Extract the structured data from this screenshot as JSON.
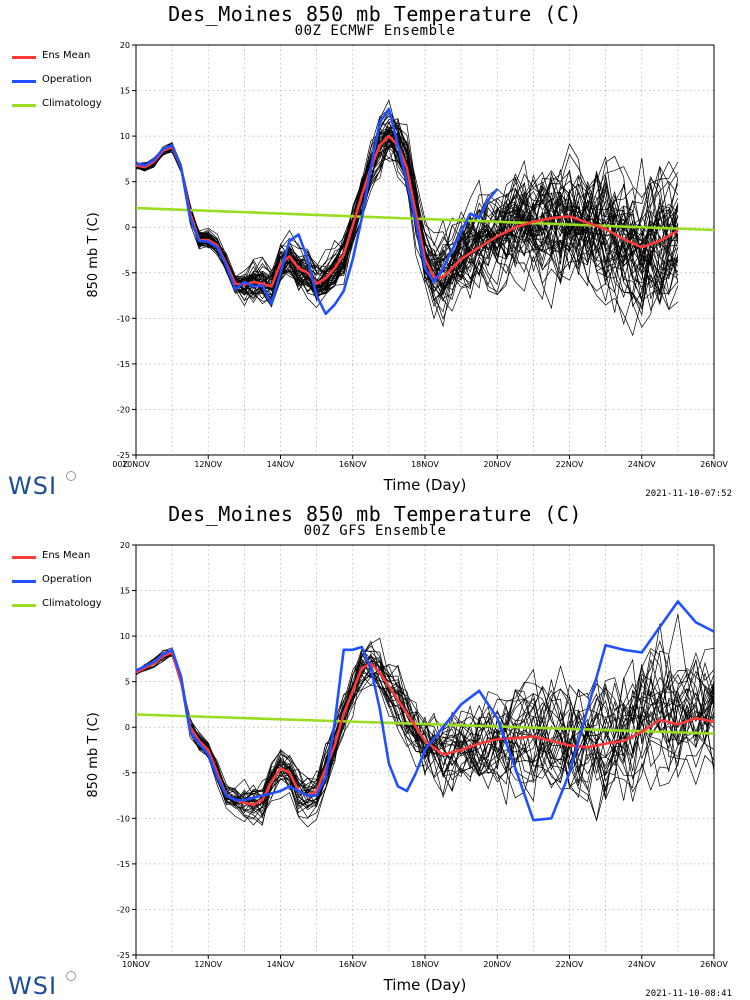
{
  "charts": [
    {
      "title": "Des_Moines 850 mb Temperature (C)",
      "subtitle": "00Z ECMWF Ensemble",
      "timestamp": "2021-11-10-07:52",
      "logo": "WSI",
      "corner_label": "00Z",
      "colors": {
        "ens_mean": "#ff3a3a",
        "operation": "#2050ff",
        "climatology": "#99dd22",
        "members": "#000000"
      }
    },
    {
      "title": "Des_Moines 850 mb Temperature (C)",
      "subtitle": "00Z GFS Ensemble",
      "timestamp": "2021-11-10-08:41",
      "logo": "WSI",
      "corner_label": "",
      "colors": {
        "ens_mean": "#ff3a3a",
        "operation": "#2050ff",
        "climatology": "#99dd22",
        "members": "#000000"
      }
    }
  ],
  "legend": [
    "Ens Mean",
    "Operation",
    "Climatology"
  ],
  "chart_data": [
    {
      "type": "line",
      "title": "Des_Moines 850 mb Temperature (C)",
      "subtitle": "00Z ECMWF Ensemble",
      "xlabel": "Time (Day)",
      "ylabel": "850 mb T (C)",
      "xlim": [
        10.0,
        26.0
      ],
      "ylim": [
        -25,
        20
      ],
      "xticks": [
        {
          "x": 10,
          "label": "10NOV"
        },
        {
          "x": 12,
          "label": "12NOV"
        },
        {
          "x": 14,
          "label": "14NOV"
        },
        {
          "x": 16,
          "label": "16NOV"
        },
        {
          "x": 18,
          "label": "18NOV"
        },
        {
          "x": 20,
          "label": "20NOV"
        },
        {
          "x": 22,
          "label": "22NOV"
        },
        {
          "x": 24,
          "label": "24NOV"
        },
        {
          "x": 26,
          "label": "26NOV"
        }
      ],
      "yticks": [
        -25,
        -20,
        -15,
        -10,
        -5,
        0,
        5,
        10,
        15,
        20
      ],
      "grid": true,
      "legend_position": "left-outside",
      "members_count": 51,
      "members_end": 25.0,
      "series": [
        {
          "name": "Ens Mean",
          "color": "#ff3a3a",
          "x": [
            10.0,
            10.25,
            10.5,
            10.75,
            11.0,
            11.25,
            11.5,
            11.75,
            12.0,
            12.25,
            12.5,
            12.75,
            13.0,
            13.25,
            13.5,
            13.75,
            14.0,
            14.25,
            14.5,
            14.75,
            15.0,
            15.25,
            15.5,
            15.75,
            16.0,
            16.25,
            16.5,
            16.75,
            17.0,
            17.25,
            17.5,
            17.75,
            18.0,
            18.25,
            18.5,
            18.75,
            19.0,
            19.5,
            20.0,
            20.5,
            21.0,
            21.5,
            22.0,
            22.5,
            23.0,
            23.5,
            24.0,
            24.5,
            25.0
          ],
          "y": [
            6.8,
            6.6,
            7.2,
            8.4,
            8.8,
            6.5,
            1.5,
            -1.4,
            -1.4,
            -2.0,
            -4.0,
            -6.2,
            -6.3,
            -6.0,
            -6.2,
            -6.5,
            -4.0,
            -3.2,
            -4.5,
            -5.0,
            -6.2,
            -5.6,
            -4.5,
            -3.0,
            0.2,
            3.5,
            6.5,
            9.0,
            10.0,
            9.0,
            6.5,
            1.5,
            -3.5,
            -5.5,
            -5.5,
            -4.5,
            -3.5,
            -2.2,
            -1.0,
            0.0,
            0.6,
            1.0,
            1.2,
            0.5,
            -0.2,
            -1.3,
            -2.2,
            -1.5,
            -0.4
          ]
        },
        {
          "name": "Operation",
          "color": "#2050ff",
          "x": [
            10.0,
            10.25,
            10.5,
            10.75,
            11.0,
            11.25,
            11.5,
            11.75,
            12.0,
            12.25,
            12.5,
            12.75,
            13.0,
            13.25,
            13.5,
            13.75,
            14.0,
            14.25,
            14.5,
            14.75,
            15.0,
            15.25,
            15.5,
            15.75,
            16.0,
            16.25,
            16.5,
            16.75,
            17.0,
            17.25,
            17.5,
            17.75,
            18.0,
            18.25,
            18.5,
            18.75,
            19.0,
            19.25,
            19.5,
            19.75,
            20.0
          ],
          "y": [
            7.0,
            6.8,
            7.4,
            8.6,
            9.0,
            6.5,
            1.0,
            -1.5,
            -1.6,
            -2.2,
            -4.2,
            -6.8,
            -6.0,
            -6.5,
            -6.4,
            -8.4,
            -5.0,
            -1.5,
            -0.8,
            -3.5,
            -7.5,
            -9.5,
            -8.5,
            -7.0,
            -3.5,
            1.0,
            6.5,
            11.5,
            13.0,
            9.0,
            5.0,
            0.5,
            -4.5,
            -6.0,
            -4.5,
            -2.5,
            -0.5,
            1.5,
            1.0,
            3.0,
            4.2
          ]
        },
        {
          "name": "Climatology",
          "color": "#99dd22",
          "x": [
            10.0,
            26.0
          ],
          "y": [
            2.1,
            -0.3
          ]
        }
      ]
    },
    {
      "type": "line",
      "title": "Des_Moines 850 mb Temperature (C)",
      "subtitle": "00Z GFS Ensemble",
      "xlabel": "Time (Day)",
      "ylabel": "850 mb T (C)",
      "xlim": [
        10.0,
        26.0
      ],
      "ylim": [
        -25,
        20
      ],
      "xticks": [
        {
          "x": 10,
          "label": "10NOV"
        },
        {
          "x": 12,
          "label": "12NOV"
        },
        {
          "x": 14,
          "label": "14NOV"
        },
        {
          "x": 16,
          "label": "16NOV"
        },
        {
          "x": 18,
          "label": "18NOV"
        },
        {
          "x": 20,
          "label": "20NOV"
        },
        {
          "x": 22,
          "label": "22NOV"
        },
        {
          "x": 24,
          "label": "24NOV"
        },
        {
          "x": 26,
          "label": "26NOV"
        }
      ],
      "yticks": [
        -25,
        -20,
        -15,
        -10,
        -5,
        0,
        5,
        10,
        15,
        20
      ],
      "grid": true,
      "legend_position": "left-outside",
      "members_count": 31,
      "members_end": 26.0,
      "series": [
        {
          "name": "Ens Mean",
          "color": "#ff3a3a",
          "x": [
            10.0,
            10.25,
            10.5,
            10.75,
            11.0,
            11.25,
            11.5,
            11.75,
            12.0,
            12.25,
            12.5,
            12.75,
            13.0,
            13.25,
            13.5,
            13.75,
            14.0,
            14.25,
            14.5,
            14.75,
            15.0,
            15.25,
            15.5,
            15.75,
            16.0,
            16.25,
            16.5,
            16.75,
            17.0,
            17.25,
            17.5,
            17.75,
            18.0,
            18.5,
            19.0,
            19.5,
            20.0,
            20.5,
            21.0,
            21.5,
            22.0,
            22.5,
            23.0,
            23.5,
            24.0,
            24.5,
            25.0,
            25.5,
            26.0
          ],
          "y": [
            6.0,
            6.5,
            7.0,
            7.8,
            8.2,
            5.0,
            0.0,
            -1.5,
            -2.5,
            -5.0,
            -7.5,
            -8.0,
            -8.3,
            -8.5,
            -8.0,
            -6.0,
            -4.5,
            -5.0,
            -7.0,
            -7.5,
            -7.0,
            -4.5,
            -2.0,
            1.5,
            4.0,
            6.5,
            7.0,
            6.0,
            4.5,
            3.0,
            1.5,
            0.0,
            -1.5,
            -3.0,
            -2.5,
            -1.8,
            -1.3,
            -1.2,
            -1.0,
            -1.5,
            -2.0,
            -2.2,
            -1.8,
            -1.5,
            -0.5,
            0.8,
            0.3,
            1.0,
            0.6
          ]
        },
        {
          "name": "Operation",
          "color": "#2050ff",
          "x": [
            10.0,
            10.25,
            10.5,
            10.75,
            11.0,
            11.25,
            11.5,
            11.75,
            12.0,
            12.25,
            12.5,
            12.75,
            13.0,
            13.5,
            14.0,
            14.25,
            14.5,
            14.75,
            15.0,
            15.25,
            15.5,
            15.75,
            16.0,
            16.25,
            16.5,
            16.75,
            17.0,
            17.25,
            17.5,
            17.75,
            18.0,
            18.5,
            19.0,
            19.5,
            20.0,
            20.5,
            21.0,
            21.5,
            22.0,
            22.5,
            23.0,
            23.5,
            24.0,
            24.5,
            25.0,
            25.5,
            26.0
          ],
          "y": [
            6.2,
            6.7,
            7.2,
            8.0,
            8.5,
            5.5,
            -0.5,
            -1.8,
            -3.0,
            -5.5,
            -7.5,
            -8.0,
            -8.0,
            -7.5,
            -7.0,
            -6.5,
            -7.0,
            -7.5,
            -7.5,
            -5.5,
            0.5,
            8.5,
            8.5,
            8.8,
            6.5,
            2.0,
            -4.0,
            -6.5,
            -7.0,
            -5.0,
            -2.5,
            0.0,
            2.5,
            4.0,
            1.0,
            -4.5,
            -10.2,
            -10.0,
            -5.0,
            2.0,
            9.0,
            8.5,
            8.2,
            11.0,
            13.8,
            11.5,
            10.5
          ]
        },
        {
          "name": "Climatology",
          "color": "#99dd22",
          "x": [
            10.0,
            26.0
          ],
          "y": [
            1.4,
            -0.7
          ]
        }
      ]
    }
  ]
}
